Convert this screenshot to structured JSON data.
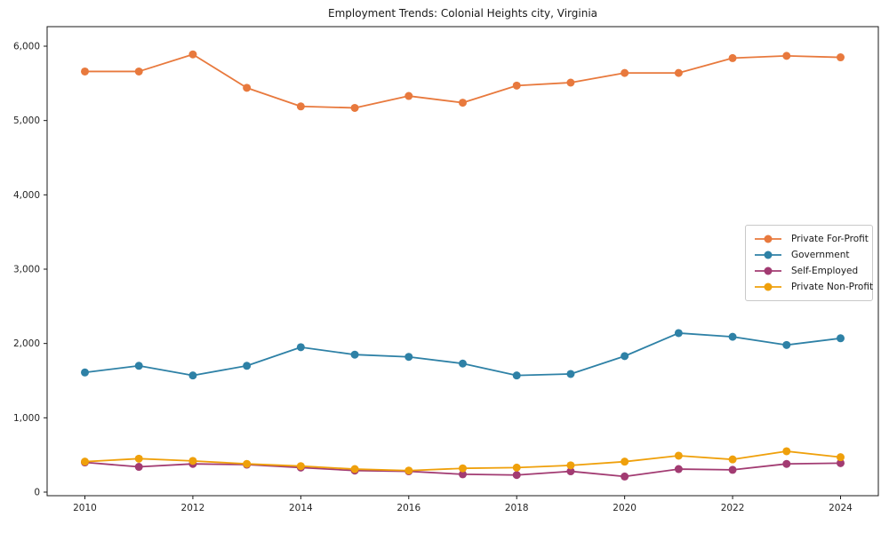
{
  "title": "Employment Trends: Colonial Heights city, Virginia",
  "chart_data": {
    "type": "line",
    "title": "Employment Trends: Colonial Heights city, Virginia",
    "xlabel": "",
    "ylabel": "",
    "x": [
      2010,
      2011,
      2012,
      2013,
      2014,
      2015,
      2016,
      2017,
      2018,
      2019,
      2020,
      2021,
      2022,
      2023,
      2024
    ],
    "series": [
      {
        "name": "Private For-Profit",
        "color": "#e8793d",
        "values": [
          5660,
          5660,
          5890,
          5440,
          5190,
          5170,
          5330,
          5240,
          5470,
          5510,
          5640,
          5640,
          5840,
          5870,
          5850
        ]
      },
      {
        "name": "Government",
        "color": "#2e81a6",
        "values": [
          1610,
          1700,
          1570,
          1700,
          1950,
          1850,
          1820,
          1730,
          1570,
          1590,
          1830,
          2140,
          2090,
          1980,
          2070
        ]
      },
      {
        "name": "Self-Employed",
        "color": "#a23b72",
        "values": [
          400,
          340,
          380,
          370,
          330,
          290,
          280,
          240,
          230,
          280,
          210,
          310,
          300,
          380,
          390
        ]
      },
      {
        "name": "Private Non-Profit",
        "color": "#efa00b",
        "values": [
          410,
          450,
          420,
          380,
          350,
          310,
          290,
          320,
          330,
          360,
          410,
          490,
          440,
          550,
          470
        ]
      }
    ],
    "xticks": [
      2010,
      2012,
      2014,
      2016,
      2018,
      2020,
      2022,
      2024
    ],
    "xtick_labels": [
      "2010",
      "2012",
      "2014",
      "2016",
      "2018",
      "2020",
      "2022",
      "2024"
    ],
    "yticks": [
      0,
      1000,
      2000,
      3000,
      4000,
      5000,
      6000
    ],
    "ytick_labels": [
      "0",
      "1,000",
      "2,000",
      "3,000",
      "4,000",
      "5,000",
      "6,000"
    ],
    "xlim": [
      2009.3,
      2024.7
    ],
    "ylim": [
      -48,
      6263
    ],
    "grid": false,
    "legend_position": "center right"
  }
}
